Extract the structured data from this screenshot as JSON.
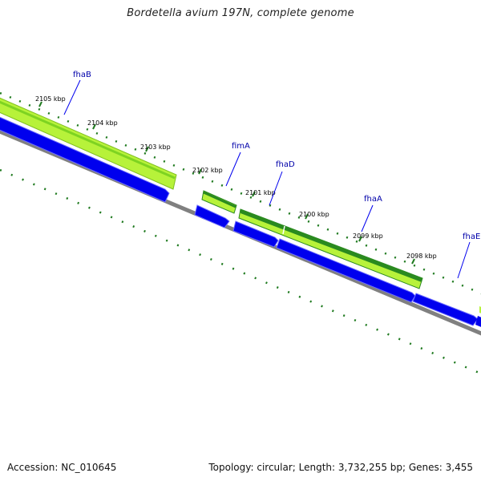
{
  "title": "Bordetella avium 197N, complete genome",
  "footer": {
    "accession": "Accession: NC_010645",
    "summary": "Topology: circular; Length: 3,732,255 bp; Genes: 3,455"
  },
  "colors": {
    "backbone": "#808080",
    "cds": "#0000ee",
    "feature_light": "#b7f23a",
    "feature_dark": "#2a8a1f",
    "ticks": "#1f7a1f",
    "gene_label": "#0000aa"
  },
  "scale": {
    "unit": "kbp",
    "ticks": [
      {
        "kbp": 2105,
        "label": "2105 kbp"
      },
      {
        "kbp": 2104,
        "label": "2104 kbp"
      },
      {
        "kbp": 2103,
        "label": "2103 kbp"
      },
      {
        "kbp": 2102,
        "label": "2102 kbp"
      },
      {
        "kbp": 2101,
        "label": "2101 kbp"
      },
      {
        "kbp": 2100,
        "label": "2100 kbp"
      },
      {
        "kbp": 2099,
        "label": "2099 kbp"
      },
      {
        "kbp": 2098,
        "label": "2098 kbp"
      }
    ]
  },
  "genes": [
    {
      "name": "fhaB",
      "label": "fhaB"
    },
    {
      "name": "fimA",
      "label": "fimA"
    },
    {
      "name": "fhaD",
      "label": "fhaD"
    },
    {
      "name": "fhaA",
      "label": "fhaA"
    },
    {
      "name": "fhaE",
      "label": "fhaE"
    }
  ]
}
